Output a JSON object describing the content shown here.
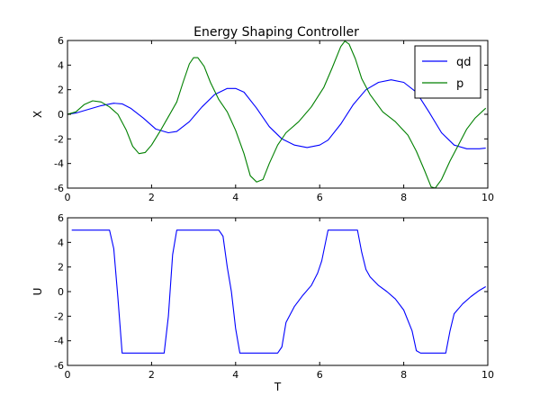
{
  "chart_data": [
    {
      "type": "line",
      "title": "Energy Shaping Controller",
      "xlabel": "",
      "ylabel": "X",
      "xlim": [
        0,
        10
      ],
      "ylim": [
        -6,
        6
      ],
      "xticks": [
        0,
        2,
        4,
        6,
        8,
        10
      ],
      "yticks": [
        -6,
        -4,
        -2,
        0,
        2,
        4,
        6
      ],
      "legend": "top-right",
      "series": [
        {
          "name": "qd",
          "color": "#0000ff",
          "x": [
            0,
            0.2,
            0.5,
            0.8,
            1.1,
            1.3,
            1.5,
            1.8,
            2.1,
            2.4,
            2.6,
            2.9,
            3.2,
            3.5,
            3.8,
            4.0,
            4.2,
            4.5,
            4.8,
            5.1,
            5.4,
            5.7,
            6.0,
            6.2,
            6.5,
            6.8,
            7.1,
            7.4,
            7.7,
            8.0,
            8.3,
            8.6,
            8.9,
            9.2,
            9.5,
            9.8,
            9.95
          ],
          "y": [
            0.0,
            0.1,
            0.4,
            0.7,
            0.9,
            0.85,
            0.5,
            -0.3,
            -1.2,
            -1.5,
            -1.4,
            -0.6,
            0.6,
            1.6,
            2.1,
            2.1,
            1.8,
            0.5,
            -1.0,
            -2.0,
            -2.5,
            -2.7,
            -2.5,
            -2.1,
            -0.8,
            0.8,
            2.0,
            2.6,
            2.8,
            2.6,
            1.8,
            0.2,
            -1.5,
            -2.5,
            -2.8,
            -2.8,
            -2.75
          ]
        },
        {
          "name": "p",
          "color": "#008000",
          "x": [
            0,
            0.2,
            0.4,
            0.6,
            0.8,
            1.0,
            1.2,
            1.4,
            1.55,
            1.7,
            1.85,
            2.0,
            2.2,
            2.4,
            2.6,
            2.75,
            2.9,
            3.0,
            3.1,
            3.25,
            3.4,
            3.6,
            3.8,
            4.0,
            4.2,
            4.35,
            4.5,
            4.65,
            4.8,
            5.0,
            5.2,
            5.5,
            5.8,
            6.1,
            6.3,
            6.5,
            6.6,
            6.7,
            6.85,
            7.0,
            7.2,
            7.5,
            7.8,
            8.1,
            8.3,
            8.5,
            8.65,
            8.75,
            8.9,
            9.1,
            9.3,
            9.5,
            9.7,
            9.95
          ],
          "y": [
            0.0,
            0.2,
            0.8,
            1.1,
            1.0,
            0.6,
            0.0,
            -1.3,
            -2.6,
            -3.2,
            -3.1,
            -2.5,
            -1.4,
            -0.2,
            1.0,
            2.6,
            4.1,
            4.6,
            4.6,
            3.9,
            2.6,
            1.2,
            0.2,
            -1.3,
            -3.2,
            -5.0,
            -5.5,
            -5.3,
            -4.0,
            -2.5,
            -1.5,
            -0.6,
            0.6,
            2.2,
            3.8,
            5.5,
            5.95,
            5.7,
            4.5,
            2.9,
            1.6,
            0.2,
            -0.6,
            -1.7,
            -3.0,
            -4.6,
            -5.9,
            -6.0,
            -5.3,
            -3.8,
            -2.5,
            -1.2,
            -0.3,
            0.5
          ]
        }
      ]
    },
    {
      "type": "line",
      "title": "",
      "xlabel": "T",
      "ylabel": "U",
      "xlim": [
        0,
        10
      ],
      "ylim": [
        -6,
        6
      ],
      "xticks": [
        0,
        2,
        4,
        6,
        8,
        10
      ],
      "yticks": [
        -6,
        -4,
        -2,
        0,
        2,
        4,
        6
      ],
      "legend": "none",
      "series": [
        {
          "name": "",
          "color": "#0000ff",
          "x": [
            0.1,
            1.0,
            1.1,
            1.2,
            1.3,
            2.3,
            2.4,
            2.5,
            2.6,
            3.6,
            3.7,
            3.8,
            3.9,
            4.0,
            4.1,
            4.2,
            5.0,
            5.1,
            5.2,
            5.4,
            5.6,
            5.8,
            5.95,
            6.05,
            6.2,
            6.9,
            7.0,
            7.1,
            7.2,
            7.4,
            7.6,
            7.8,
            8.0,
            8.2,
            8.3,
            8.4,
            9.0,
            9.1,
            9.2,
            9.4,
            9.6,
            9.8,
            9.95
          ],
          "y": [
            5.0,
            5.0,
            3.5,
            -0.5,
            -5.0,
            -5.0,
            -2.0,
            3.0,
            5.0,
            5.0,
            4.5,
            2.0,
            0.0,
            -3.0,
            -5.0,
            -5.0,
            -5.0,
            -4.5,
            -2.5,
            -1.2,
            -0.3,
            0.5,
            1.5,
            2.5,
            5.0,
            5.0,
            3.2,
            1.8,
            1.2,
            0.5,
            0.0,
            -0.6,
            -1.5,
            -3.2,
            -4.8,
            -5.0,
            -5.0,
            -3.2,
            -1.8,
            -1.0,
            -0.4,
            0.1,
            0.4
          ]
        }
      ]
    }
  ]
}
